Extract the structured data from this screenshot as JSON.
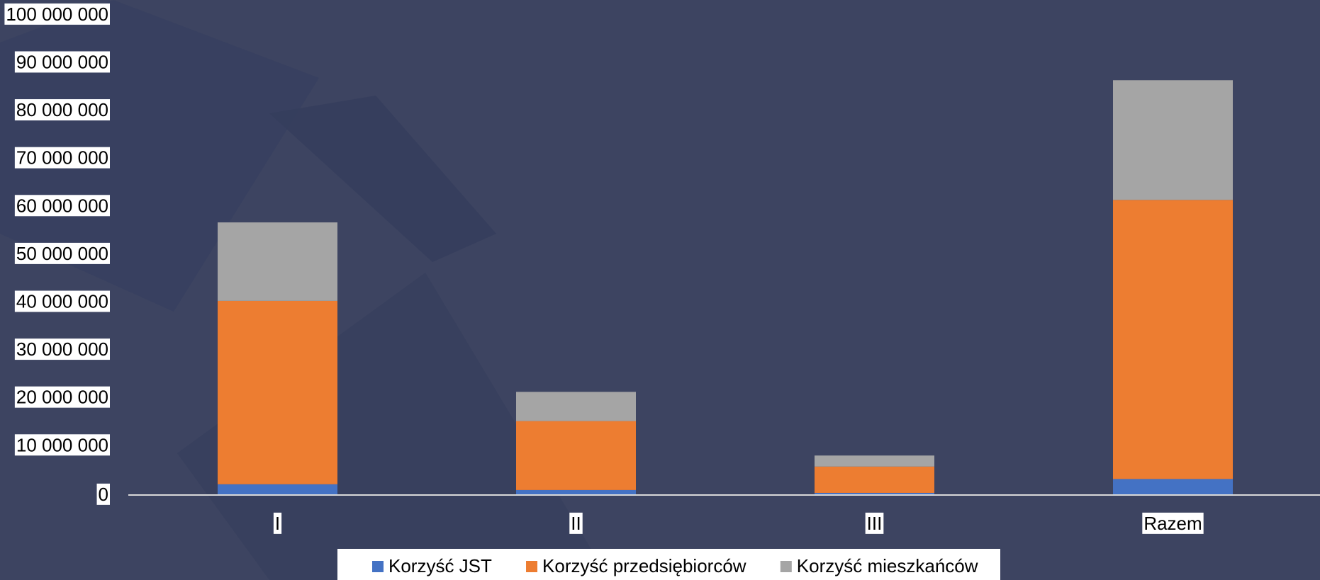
{
  "chart_data": {
    "type": "stacked_bar",
    "categories": [
      "I",
      "II",
      "III",
      "Razem"
    ],
    "series": [
      {
        "name": "Korzyść JST",
        "color": "#4472c4",
        "values": [
          2100000,
          900000,
          300000,
          3200000
        ]
      },
      {
        "name": "Korzyść przedsiębiorców",
        "color": "#ed7d31",
        "values": [
          38300000,
          14400000,
          5500000,
          58300000
        ]
      },
      {
        "name": "Korzyść mieszkańców",
        "color": "#a5a5a5",
        "values": [
          16400000,
          6100000,
          2300000,
          25000000
        ]
      }
    ],
    "ylim": [
      0,
      100000000
    ],
    "yticks": [
      0,
      {
        "value": 10000000,
        "label": "10 000 000"
      },
      {
        "value": 20000000,
        "label": "20 000 000"
      },
      {
        "value": 30000000,
        "label": "30 000 000"
      },
      {
        "value": 40000000,
        "label": "40 000 000"
      },
      {
        "value": 50000000,
        "label": "50 000 000"
      },
      {
        "value": 60000000,
        "label": "60 000 000"
      },
      {
        "value": 70000000,
        "label": "70 000 000"
      },
      {
        "value": 80000000,
        "label": "80 000 000"
      },
      {
        "value": 90000000,
        "label": "90 000 000"
      },
      {
        "value": 100000000,
        "label": "100 000 000"
      }
    ],
    "legend": "bottom"
  }
}
